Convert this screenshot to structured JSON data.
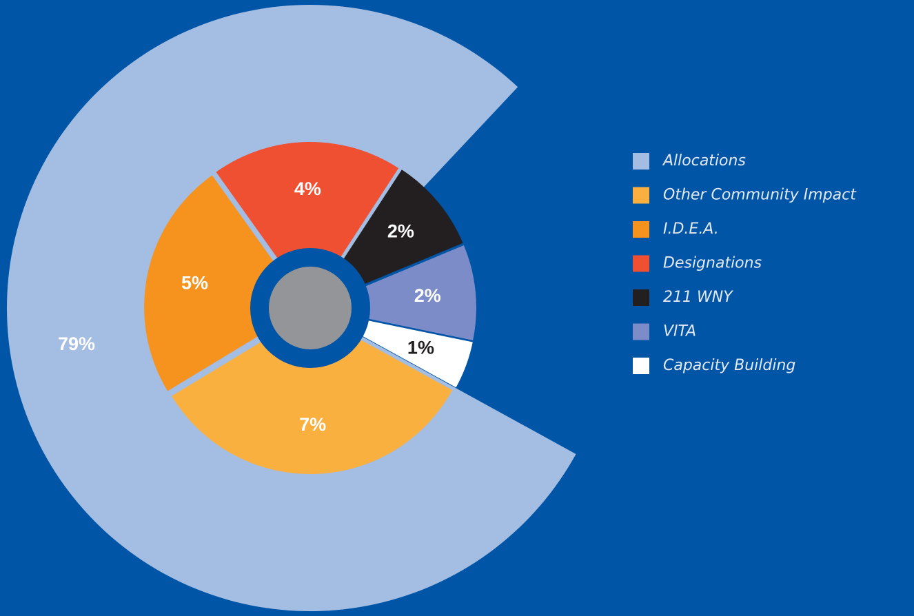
{
  "chart_data": {
    "type": "pie",
    "categories": [
      "Allocations",
      "Other Community Impact",
      "I.D.E.A.",
      "Designations",
      "211 WNY",
      "VITA",
      "Capacity Building"
    ],
    "values": [
      79,
      7,
      5,
      4,
      2,
      2,
      1
    ],
    "value_labels": [
      "79%",
      "7%",
      "5%",
      "4%",
      "2%",
      "2%",
      "1%"
    ],
    "colors": [
      "#a4bde2",
      "#f9b03f",
      "#f6921e",
      "#ef5031",
      "#231f20",
      "#7b8cc8",
      "#ffffff"
    ]
  }
}
